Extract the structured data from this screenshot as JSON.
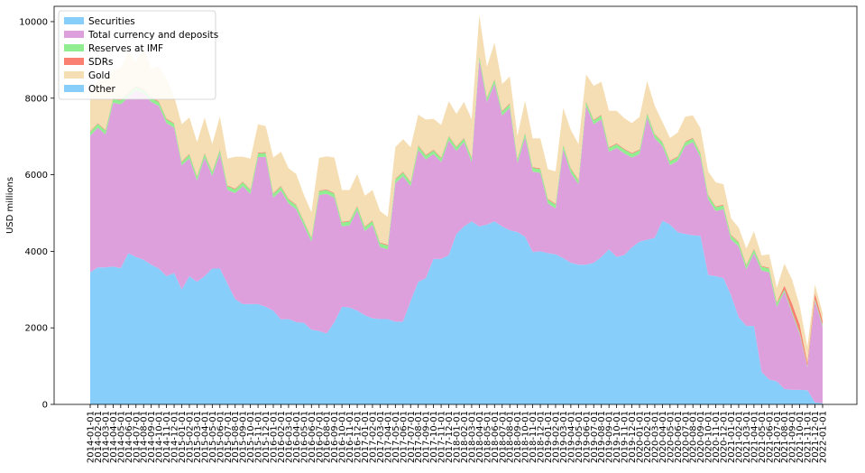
{
  "chart_data": {
    "type": "area",
    "stacked": true,
    "xlabel": "",
    "ylabel": "USD millions",
    "ylim": [
      0,
      10400
    ],
    "yticks": [
      0,
      2000,
      4000,
      6000,
      8000,
      10000
    ],
    "grid": false,
    "legend_position": "top-left",
    "x": [
      "2014-01-01",
      "2014-02-01",
      "2014-03-01",
      "2014-04-01",
      "2014-05-01",
      "2014-06-01",
      "2014-07-01",
      "2014-08-01",
      "2014-09-01",
      "2014-10-01",
      "2014-11-01",
      "2014-12-01",
      "2015-01-01",
      "2015-02-01",
      "2015-03-01",
      "2015-04-01",
      "2015-05-01",
      "2015-06-01",
      "2015-07-01",
      "2015-08-01",
      "2015-09-01",
      "2015-10-01",
      "2015-11-01",
      "2015-12-01",
      "2016-01-01",
      "2016-02-01",
      "2016-03-01",
      "2016-04-01",
      "2016-05-01",
      "2016-06-01",
      "2016-07-01",
      "2016-08-01",
      "2016-09-01",
      "2016-10-01",
      "2016-11-01",
      "2016-12-01",
      "2017-01-01",
      "2017-02-01",
      "2017-03-01",
      "2017-04-01",
      "2017-05-01",
      "2017-06-01",
      "2017-07-01",
      "2017-08-01",
      "2017-09-01",
      "2017-10-01",
      "2017-11-01",
      "2017-12-01",
      "2018-01-01",
      "2018-02-01",
      "2018-03-01",
      "2018-04-01",
      "2018-05-01",
      "2018-06-01",
      "2018-07-01",
      "2018-08-01",
      "2018-09-01",
      "2018-10-01",
      "2018-11-01",
      "2018-12-01",
      "2019-01-01",
      "2019-02-01",
      "2019-03-01",
      "2019-04-01",
      "2019-05-01",
      "2019-06-01",
      "2019-07-01",
      "2019-08-01",
      "2019-09-01",
      "2019-10-01",
      "2019-11-01",
      "2019-12-01",
      "2020-01-01",
      "2020-02-01",
      "2020-03-01",
      "2020-04-01",
      "2020-05-01",
      "2020-06-01",
      "2020-07-01",
      "2020-08-01",
      "2020-09-01",
      "2020-10-01",
      "2020-11-01",
      "2020-12-01",
      "2021-01-01",
      "2021-02-01",
      "2021-03-01",
      "2021-04-01",
      "2021-05-01",
      "2021-06-01",
      "2021-07-01",
      "2021-08-01",
      "2021-09-01",
      "2021-10-01",
      "2021-11-01",
      "2021-12-01",
      "2022-01-01"
    ],
    "xtick_labels": [
      "2014-01-01",
      "2014-02-01",
      "2014-03-01",
      "2014-04-01",
      "2014-05-01",
      "2014-06-01",
      "2014-07-01",
      "2014-08-01",
      "2014-09-01",
      "2014-10-01",
      "2014-11-01",
      "2014-12-01",
      "2015-01-01",
      "2015-02-01",
      "2015-03-01",
      "2015-04-01",
      "2015-05-01",
      "2015-06-01",
      "2015-07-01",
      "2015-08-01",
      "2015-09-01",
      "2015-10-01",
      "2015-11-01",
      "2015-12-01",
      "2016-01-01",
      "2016-02-01",
      "2016-03-01",
      "2016-04-01",
      "2016-05-01",
      "2016-06-01",
      "2016-07-01",
      "2016-08-01",
      "2016-09-01",
      "2016-10-01",
      "2016-11-01",
      "2016-12-01",
      "2017-01-01",
      "2017-02-01",
      "2017-03-01",
      "2017-04-01",
      "2017-05-01",
      "2017-06-01",
      "2017-07-01",
      "2017-08-01",
      "2017-09-01",
      "2017-10-01",
      "2017-11-01",
      "2017-12-01",
      "2018-01-01",
      "2018-02-01",
      "2018-03-01",
      "2018-04-01",
      "2018-05-01",
      "2018-06-01",
      "2018-07-01",
      "2018-08-01",
      "2018-09-01",
      "2018-10-01",
      "2018-11-01",
      "2018-12-01",
      "2019-01-01",
      "2019-02-01",
      "2019-03-01",
      "2019-04-01",
      "2019-05-01",
      "2019-06-01",
      "2019-07-01",
      "2019-08-01",
      "2019-09-01",
      "2019-10-01",
      "2019-11-01",
      "2019-12-01",
      "2020-01-01",
      "2020-02-01",
      "2020-03-01",
      "2020-04-01",
      "2020-05-01",
      "2020-06-01",
      "2020-07-01",
      "2020-08-01",
      "2020-09-01",
      "2020-10-01",
      "2020-11-01",
      "2020-12-01",
      "2021-01-01",
      "2021-02-01",
      "2021-03-01",
      "2021-04-01",
      "2021-05-01",
      "2021-06-01",
      "2021-07-01",
      "2021-08-01",
      "2021-09-01",
      "2021-10-01",
      "2021-11-01",
      "2021-12-01",
      "2022-01-01"
    ],
    "series": [
      {
        "name": "Securities",
        "color": "#87cefa",
        "values": [
          3450,
          3580,
          3580,
          3600,
          3560,
          3950,
          3850,
          3780,
          3650,
          3550,
          3350,
          3430,
          3000,
          3350,
          3200,
          3350,
          3550,
          3550,
          3150,
          2750,
          2620,
          2620,
          2620,
          2550,
          2450,
          2220,
          2230,
          2150,
          2130,
          1950,
          1920,
          1850,
          2150,
          2550,
          2530,
          2450,
          2330,
          2250,
          2230,
          2230,
          2160,
          2160,
          2700,
          3200,
          3300,
          3800,
          3800,
          3900,
          4450,
          4650,
          4780,
          4650,
          4700,
          4780,
          4650,
          4550,
          4500,
          4380,
          3980,
          4000,
          3950,
          3920,
          3820,
          3700,
          3650,
          3650,
          3700,
          3850,
          4050,
          3850,
          3900,
          4100,
          4250,
          4300,
          4350,
          4800,
          4700,
          4500,
          4450,
          4420,
          4400,
          3380,
          3350,
          3300,
          2850,
          2280,
          2050,
          2050,
          850,
          650,
          600,
          400,
          380,
          380,
          370,
          50,
          30
        ]
      },
      {
        "name": "Total currency and deposits",
        "color": "#dda0dd",
        "values": [
          3570,
          3650,
          3470,
          4280,
          4280,
          4070,
          4350,
          4340,
          4250,
          4250,
          4000,
          3800,
          3250,
          3080,
          2650,
          3100,
          2420,
          3000,
          2450,
          2770,
          3080,
          2880,
          3840,
          3920,
          2950,
          3370,
          3020,
          2950,
          2550,
          2300,
          3550,
          3650,
          3250,
          2100,
          2150,
          2620,
          2200,
          2440,
          1880,
          1820,
          3620,
          3800,
          3000,
          3450,
          3100,
          2740,
          2530,
          3000,
          2170,
          2200,
          1550,
          4350,
          3200,
          3600,
          2900,
          3200,
          1800,
          2600,
          2100,
          2050,
          1300,
          1200,
          2850,
          2350,
          2100,
          4150,
          3620,
          3600,
          2550,
          2850,
          2660,
          2350,
          2290,
          3200,
          2600,
          1950,
          1550,
          1860,
          2300,
          2430,
          2050,
          1980,
          1700,
          1800,
          1460,
          1850,
          1480,
          1900,
          2650,
          2800,
          1950,
          2550,
          2000,
          1450,
          600,
          2650,
          2000
        ]
      },
      {
        "name": "Reserves at IMF",
        "color": "#90ee90",
        "values": [
          100,
          100,
          100,
          100,
          100,
          100,
          100,
          100,
          100,
          100,
          100,
          100,
          80,
          100,
          100,
          100,
          100,
          100,
          100,
          100,
          100,
          100,
          100,
          100,
          100,
          100,
          100,
          100,
          100,
          100,
          100,
          100,
          100,
          100,
          100,
          100,
          100,
          100,
          100,
          100,
          100,
          100,
          100,
          100,
          100,
          100,
          100,
          100,
          100,
          100,
          100,
          100,
          100,
          100,
          100,
          100,
          100,
          100,
          100,
          100,
          100,
          100,
          100,
          100,
          100,
          100,
          100,
          100,
          100,
          100,
          100,
          100,
          100,
          100,
          100,
          100,
          100,
          100,
          100,
          100,
          100,
          100,
          100,
          100,
          100,
          100,
          100,
          100,
          100,
          100,
          100,
          50,
          50,
          50,
          30,
          50,
          50
        ]
      },
      {
        "name": "SDRs",
        "color": "#fa8072",
        "values": [
          20,
          20,
          20,
          20,
          20,
          20,
          20,
          20,
          20,
          20,
          20,
          20,
          20,
          20,
          20,
          20,
          20,
          20,
          20,
          20,
          20,
          20,
          20,
          20,
          20,
          20,
          20,
          20,
          20,
          20,
          20,
          20,
          20,
          20,
          20,
          20,
          20,
          20,
          20,
          20,
          20,
          20,
          20,
          20,
          20,
          20,
          20,
          20,
          20,
          20,
          20,
          20,
          20,
          20,
          20,
          20,
          20,
          20,
          20,
          20,
          20,
          20,
          20,
          20,
          20,
          20,
          20,
          20,
          20,
          20,
          20,
          20,
          20,
          20,
          20,
          20,
          20,
          20,
          20,
          20,
          20,
          20,
          20,
          20,
          20,
          20,
          20,
          20,
          20,
          20,
          20,
          100,
          200,
          200,
          100,
          150,
          100
        ]
      },
      {
        "name": "Gold",
        "color": "#f5deb3",
        "values": [
          1010,
          1130,
          1330,
          720,
          840,
          1060,
          630,
          1060,
          750,
          910,
          1030,
          700,
          970,
          950,
          880,
          920,
          710,
          850,
          700,
          830,
          650,
          800,
          740,
          680,
          930,
          890,
          800,
          800,
          680,
          650,
          850,
          860,
          930,
          830,
          800,
          830,
          800,
          790,
          820,
          730,
          820,
          850,
          900,
          800,
          920,
          800,
          850,
          900,
          850,
          930,
          1000,
          1050,
          800,
          950,
          700,
          700,
          600,
          830,
          750,
          780,
          770,
          850,
          950,
          1000,
          930,
          700,
          880,
          860,
          950,
          850,
          800,
          780,
          850,
          830,
          730,
          510,
          590,
          620,
          650,
          580,
          640,
          600,
          630,
          530,
          430,
          370,
          420,
          450,
          270,
          350,
          380,
          580,
          630,
          500,
          400,
          230,
          200
        ]
      },
      {
        "name": "Other",
        "color": "#87cefa",
        "values": [
          0,
          0,
          0,
          0,
          0,
          0,
          0,
          0,
          0,
          0,
          0,
          0,
          0,
          0,
          0,
          0,
          0,
          0,
          0,
          0,
          0,
          0,
          0,
          0,
          0,
          0,
          0,
          0,
          0,
          0,
          0,
          0,
          0,
          0,
          0,
          0,
          0,
          0,
          0,
          0,
          0,
          0,
          0,
          0,
          0,
          0,
          0,
          0,
          0,
          0,
          0,
          0,
          0,
          0,
          0,
          0,
          0,
          0,
          0,
          0,
          0,
          0,
          0,
          0,
          0,
          0,
          0,
          0,
          0,
          0,
          0,
          0,
          0,
          0,
          0,
          0,
          0,
          0,
          0,
          0,
          0,
          0,
          0,
          0,
          0,
          0,
          0,
          0,
          0,
          0,
          0,
          0,
          0,
          0,
          0,
          0,
          0
        ]
      }
    ]
  }
}
